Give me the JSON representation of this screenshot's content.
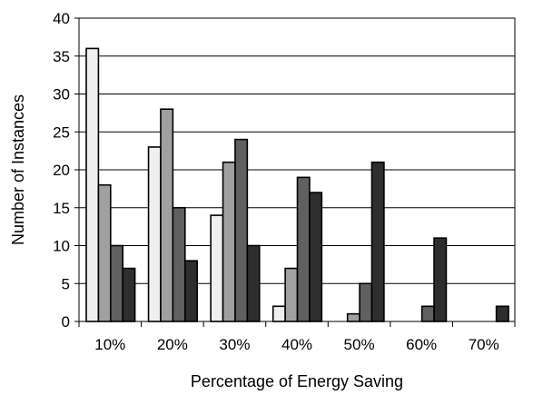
{
  "chart_data": {
    "type": "bar",
    "title": "",
    "xlabel": "Percentage of Energy Saving",
    "ylabel": "Number of Instances",
    "categories": [
      "10%",
      "20%",
      "30%",
      "40%",
      "50%",
      "60%",
      "70%"
    ],
    "ylim": [
      0,
      40
    ],
    "yticks": [
      0,
      5,
      10,
      15,
      20,
      25,
      30,
      35,
      40
    ],
    "grid": true,
    "legend": "none",
    "series": [
      {
        "values": [
          36,
          23,
          14,
          2,
          0,
          0,
          0
        ],
        "color": "#efefef"
      },
      {
        "values": [
          18,
          28,
          21,
          7,
          1,
          0,
          0
        ],
        "color": "#a0a0a0"
      },
      {
        "values": [
          10,
          15,
          24,
          19,
          5,
          2,
          0
        ],
        "color": "#606060"
      },
      {
        "values": [
          7,
          8,
          10,
          17,
          21,
          11,
          2
        ],
        "color": "#2e2e2e"
      }
    ]
  }
}
